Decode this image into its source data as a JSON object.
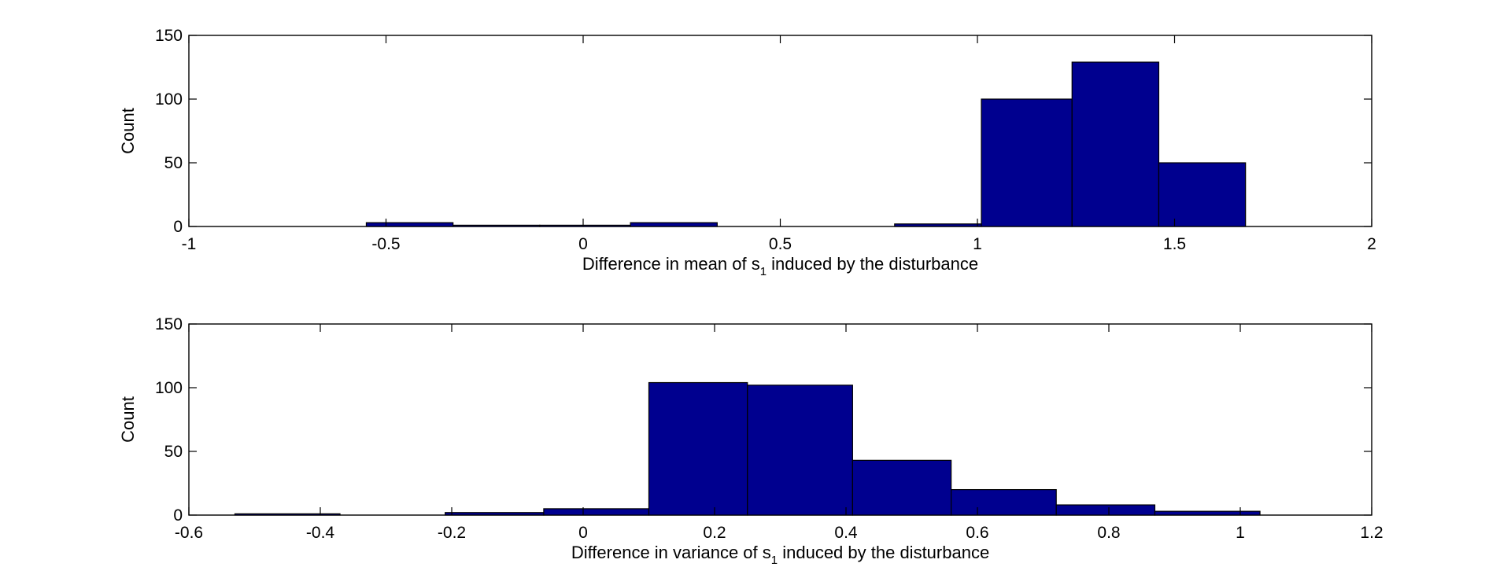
{
  "chart_data": [
    {
      "type": "bar",
      "xlabel": {
        "text": "Difference in mean of s",
        "sub": "1",
        "rest": " induced by the disturbance"
      },
      "ylabel": "Count",
      "xlim": [
        -1,
        2
      ],
      "ylim": [
        0,
        150
      ],
      "xticks": [
        "-1",
        "-0.5",
        "0",
        "0.5",
        "1",
        "1.5",
        "2"
      ],
      "yticks": [
        "0",
        "50",
        "100",
        "150"
      ],
      "grid": false,
      "bar_color": "#00008f",
      "bins": [
        {
          "x0": -0.55,
          "x1": -0.33,
          "count": 3
        },
        {
          "x0": -0.33,
          "x1": -0.11,
          "count": 1
        },
        {
          "x0": -0.11,
          "x1": 0.12,
          "count": 1
        },
        {
          "x0": 0.12,
          "x1": 0.34,
          "count": 3
        },
        {
          "x0": 0.34,
          "x1": 0.56,
          "count": 0
        },
        {
          "x0": 0.56,
          "x1": 0.79,
          "count": 0
        },
        {
          "x0": 0.79,
          "x1": 1.01,
          "count": 2
        },
        {
          "x0": 1.01,
          "x1": 1.24,
          "count": 100
        },
        {
          "x0": 1.24,
          "x1": 1.46,
          "count": 129
        },
        {
          "x0": 1.46,
          "x1": 1.68,
          "count": 50
        }
      ]
    },
    {
      "type": "bar",
      "xlabel": {
        "text": "Difference in variance of s",
        "sub": "1",
        "rest": " induced by the disturbance"
      },
      "ylabel": "Count",
      "xlim": [
        -0.6,
        1.2
      ],
      "ylim": [
        0,
        150
      ],
      "xticks": [
        "-0.6",
        "-0.4",
        "-0.2",
        "0",
        "0.2",
        "0.4",
        "0.6",
        "0.8",
        "1",
        "1.2"
      ],
      "yticks": [
        "0",
        "50",
        "100",
        "150"
      ],
      "grid": false,
      "bar_color": "#00008f",
      "bins": [
        {
          "x0": -0.53,
          "x1": -0.37,
          "count": 1
        },
        {
          "x0": -0.37,
          "x1": -0.21,
          "count": 0
        },
        {
          "x0": -0.21,
          "x1": -0.06,
          "count": 2
        },
        {
          "x0": -0.06,
          "x1": 0.1,
          "count": 5
        },
        {
          "x0": 0.1,
          "x1": 0.25,
          "count": 104
        },
        {
          "x0": 0.25,
          "x1": 0.41,
          "count": 102
        },
        {
          "x0": 0.41,
          "x1": 0.56,
          "count": 43
        },
        {
          "x0": 0.56,
          "x1": 0.72,
          "count": 20
        },
        {
          "x0": 0.72,
          "x1": 0.87,
          "count": 8
        },
        {
          "x0": 0.87,
          "x1": 1.03,
          "count": 3
        }
      ]
    }
  ]
}
